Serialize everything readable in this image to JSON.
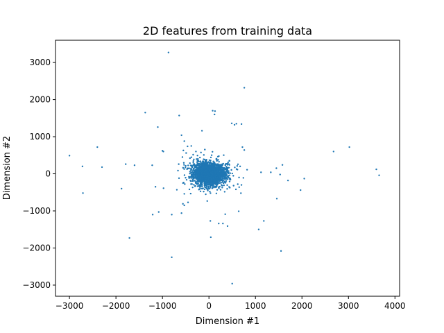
{
  "chart_data": {
    "type": "scatter",
    "title": "2D features from training data",
    "xlabel": "Dimension #1",
    "ylabel": "Dimension #2",
    "xlim": [
      -3300,
      4100
    ],
    "ylim": [
      -3300,
      3600
    ],
    "xticks": [
      -3000,
      -2000,
      -1000,
      0,
      1000,
      2000,
      3000,
      4000
    ],
    "yticks": [
      -3000,
      -2000,
      -1000,
      0,
      1000,
      2000,
      3000
    ],
    "color": "#1f77b4",
    "grid": false,
    "series": [
      {
        "outliers": {
          "x": [
            -870,
            760,
            700,
            80,
            130,
            120,
            -1370,
            -640,
            490,
            590,
            550,
            -150,
            -1100,
            -980,
            -590,
            -530,
            -460,
            -380,
            -280,
            -120,
            -1000,
            -550,
            -490,
            -570,
            720,
            760,
            -3000,
            -2400,
            -2720,
            -2300,
            -1790,
            -1600,
            -1220,
            -650,
            440,
            670,
            1120,
            1580,
            1330,
            1450,
            1700,
            1530,
            2050,
            1970,
            1460,
            2680,
            3020,
            3600,
            3660,
            -1880,
            -1150,
            -690,
            -530,
            -420,
            -210,
            -450,
            -560,
            530,
            580,
            620,
            650,
            740,
            820,
            -2710,
            -1080,
            -1210,
            -800,
            -1710,
            -590,
            -530,
            30,
            210,
            400,
            640,
            1070,
            1180,
            300,
            350,
            40,
            -800,
            1550,
            500
          ],
          "y": [
            3270,
            2320,
            1340,
            1700,
            1690,
            1600,
            1650,
            1570,
            1360,
            1350,
            1320,
            1160,
            1260,
            600,
            1040,
            880,
            740,
            750,
            600,
            200,
            620,
            630,
            560,
            450,
            720,
            640,
            490,
            720,
            200,
            180,
            260,
            230,
            230,
            260,
            240,
            200,
            40,
            240,
            40,
            150,
            -180,
            -20,
            -130,
            -440,
            -670,
            600,
            720,
            120,
            -40,
            -400,
            -350,
            -430,
            -540,
            -420,
            -420,
            -770,
            -810,
            -320,
            -420,
            -280,
            -360,
            -110,
            110,
            -520,
            -1030,
            -1100,
            -1100,
            -1730,
            -1060,
            -850,
            -1270,
            -1340,
            -1410,
            -1010,
            -1500,
            -1270,
            -1340,
            -1090,
            -1710,
            -2250,
            -2080,
            -2960
          ]
        },
        "core_cluster": {
          "x_mean": 0,
          "y_mean": 0,
          "x_spread": 160,
          "y_spread": 140,
          "count": 2600
        }
      }
    ]
  }
}
